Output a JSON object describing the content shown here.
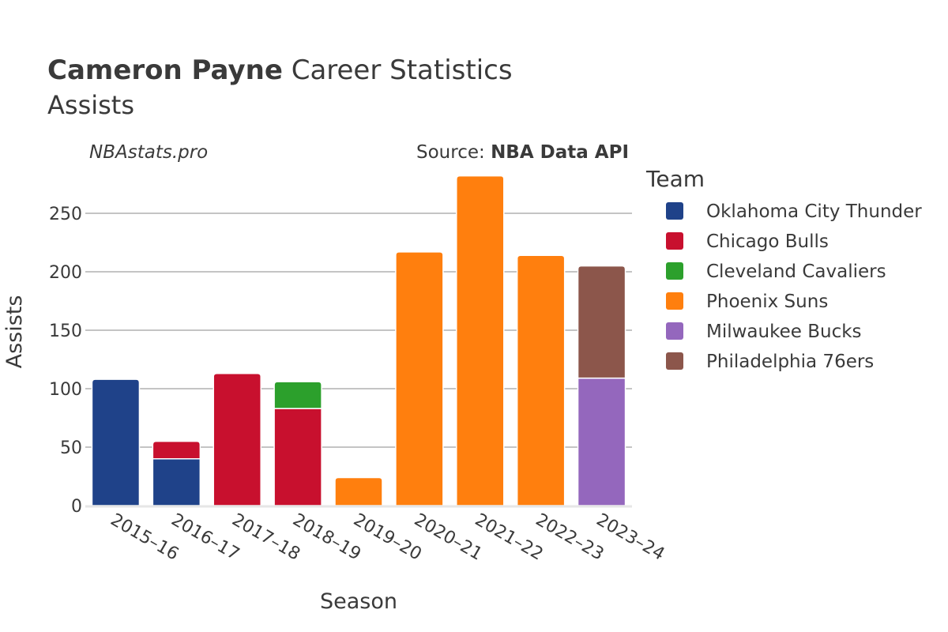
{
  "title": {
    "bold": "Cameron Payne",
    "rest": " Career Statistics"
  },
  "subtitle": "Assists",
  "credit_left": "NBAstats.pro",
  "credit_right": {
    "prefix": "Source: ",
    "bold": "NBA Data API"
  },
  "colors": {
    "Oklahoma City Thunder": "#1f4289",
    "Chicago Bulls": "#c8102e",
    "Cleveland Cavaliers": "#2ca02c",
    "Phoenix Suns": "#ff7f0e",
    "Milwaukee Bucks": "#9467bd",
    "Philadelphia 76ers": "#8c564b"
  },
  "chart_data": {
    "type": "bar",
    "stacked": true,
    "categories": [
      "2015–16",
      "2016–17",
      "2017–18",
      "2018–19",
      "2019–20",
      "2020–21",
      "2021–22",
      "2022–23",
      "2023–24"
    ],
    "series": [
      {
        "name": "Oklahoma City Thunder",
        "values": [
          108,
          40,
          0,
          0,
          0,
          0,
          0,
          0,
          0
        ]
      },
      {
        "name": "Chicago Bulls",
        "values": [
          0,
          15,
          113,
          83,
          0,
          0,
          0,
          0,
          0
        ]
      },
      {
        "name": "Cleveland Cavaliers",
        "values": [
          0,
          0,
          0,
          23,
          0,
          0,
          0,
          0,
          0
        ]
      },
      {
        "name": "Phoenix Suns",
        "values": [
          0,
          0,
          0,
          0,
          24,
          217,
          282,
          214,
          0
        ]
      },
      {
        "name": "Milwaukee Bucks",
        "values": [
          0,
          0,
          0,
          0,
          0,
          0,
          0,
          0,
          109
        ]
      },
      {
        "name": "Philadelphia 76ers",
        "values": [
          0,
          0,
          0,
          0,
          0,
          0,
          0,
          0,
          96
        ]
      }
    ],
    "xlabel": "Season",
    "ylabel": "Assists",
    "ylim": [
      0,
      290
    ],
    "yticks": [
      0,
      50,
      100,
      150,
      200,
      250
    ],
    "legend_title": "Team",
    "legend_position": "right",
    "grid": true
  }
}
